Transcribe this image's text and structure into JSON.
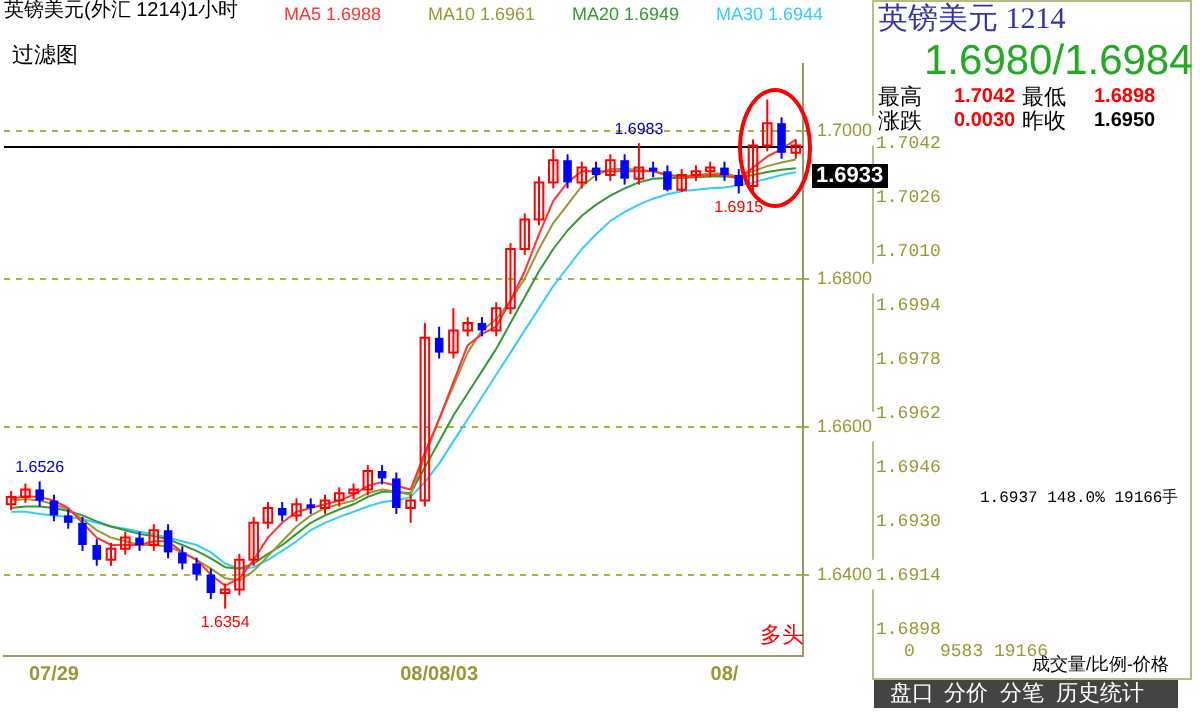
{
  "chart_data": {
    "type": "candlestick",
    "title": "英镑美元(外汇 1214)1小时",
    "categories": [
      null,
      null,
      null,
      "07/29",
      null,
      null,
      null,
      null,
      null,
      null,
      null,
      null,
      null,
      null,
      null,
      null,
      null,
      null,
      null,
      null,
      null,
      null,
      null,
      null,
      null,
      null,
      null,
      null,
      null,
      null,
      "08/08/03",
      null,
      null,
      null,
      null,
      null,
      null,
      null,
      null,
      null,
      null,
      null,
      null,
      null,
      null,
      null,
      null,
      null,
      null,
      null,
      "08/",
      null,
      null,
      null,
      null,
      null
    ],
    "ohlc": [
      [
        1.6495,
        1.6513,
        1.6487,
        1.6505
      ],
      [
        1.6505,
        1.6523,
        1.6497,
        1.6515
      ],
      [
        1.6515,
        1.6526,
        1.6492,
        1.65
      ],
      [
        1.65,
        1.6508,
        1.6472,
        1.648
      ],
      [
        1.648,
        1.6488,
        1.6462,
        1.647
      ],
      [
        1.647,
        1.6478,
        1.6432,
        1.644
      ],
      [
        1.644,
        1.6448,
        1.6412,
        1.642
      ],
      [
        1.642,
        1.6443,
        1.6412,
        1.6435
      ],
      [
        1.6435,
        1.6458,
        1.6427,
        1.645
      ],
      [
        1.645,
        1.6458,
        1.6432,
        1.644
      ],
      [
        1.644,
        1.6468,
        1.6432,
        1.646
      ],
      [
        1.646,
        1.6468,
        1.6422,
        1.643
      ],
      [
        1.643,
        1.6438,
        1.6407,
        1.6415
      ],
      [
        1.6415,
        1.6423,
        1.6392,
        1.64
      ],
      [
        1.64,
        1.6408,
        1.6367,
        1.6375
      ],
      [
        1.6375,
        1.6388,
        1.6354,
        1.638
      ],
      [
        1.638,
        1.6428,
        1.6372,
        1.642
      ],
      [
        1.642,
        1.6478,
        1.6412,
        1.647
      ],
      [
        1.647,
        1.6498,
        1.6462,
        1.649
      ],
      [
        1.649,
        1.6498,
        1.6472,
        1.648
      ],
      [
        1.648,
        1.6503,
        1.6472,
        1.6495
      ],
      [
        1.6495,
        1.6503,
        1.6482,
        1.649
      ],
      [
        1.649,
        1.6508,
        1.6482,
        1.65
      ],
      [
        1.65,
        1.6518,
        1.6492,
        1.651
      ],
      [
        1.651,
        1.6523,
        1.6502,
        1.6515
      ],
      [
        1.6515,
        1.6548,
        1.6507,
        1.654
      ],
      [
        1.654,
        1.6548,
        1.6522,
        1.653
      ],
      [
        1.653,
        1.6538,
        1.6482,
        1.649
      ],
      [
        1.649,
        1.6508,
        1.647,
        1.65
      ],
      [
        1.65,
        1.674,
        1.6492,
        1.672
      ],
      [
        1.672,
        1.6735,
        1.6692,
        1.67
      ],
      [
        1.67,
        1.676,
        1.6692,
        1.673
      ],
      [
        1.673,
        1.6748,
        1.6722,
        1.674
      ],
      [
        1.674,
        1.6748,
        1.6722,
        1.673
      ],
      [
        1.673,
        1.6768,
        1.6722,
        1.676
      ],
      [
        1.676,
        1.6848,
        1.6752,
        1.684
      ],
      [
        1.684,
        1.6888,
        1.6832,
        1.688
      ],
      [
        1.688,
        1.6938,
        1.6872,
        1.693
      ],
      [
        1.693,
        1.6975,
        1.6922,
        1.696
      ],
      [
        1.696,
        1.6968,
        1.6922,
        1.693
      ],
      [
        1.693,
        1.6958,
        1.6922,
        1.695
      ],
      [
        1.695,
        1.6958,
        1.6932,
        1.694
      ],
      [
        1.694,
        1.6968,
        1.6932,
        1.696
      ],
      [
        1.696,
        1.6968,
        1.6927,
        1.6935
      ],
      [
        1.6935,
        1.6983,
        1.6927,
        1.695
      ],
      [
        1.695,
        1.6958,
        1.6937,
        1.6945
      ],
      [
        1.6945,
        1.6953,
        1.6918,
        1.692
      ],
      [
        1.692,
        1.6948,
        1.6917,
        1.694
      ],
      [
        1.694,
        1.6953,
        1.6932,
        1.6945
      ],
      [
        1.6945,
        1.6958,
        1.6937,
        1.695
      ],
      [
        1.695,
        1.6958,
        1.6932,
        1.694
      ],
      [
        1.694,
        1.6948,
        1.6915,
        1.6925
      ],
      [
        1.6925,
        1.6988,
        1.6917,
        1.698
      ],
      [
        1.698,
        1.7042,
        1.6972,
        1.701
      ],
      [
        1.701,
        1.7018,
        1.6962,
        1.697
      ],
      [
        1.697,
        1.6988,
        1.6962,
        1.698
      ]
    ],
    "colors": [
      "#ff0000",
      "#ff0000",
      "#0000ff",
      "#0000ff",
      "#0000ff",
      "#0000ff",
      "#0000ff",
      "#ff0000",
      "#ff0000",
      "#0000ff",
      "#ff0000",
      "#0000ff",
      "#0000ff",
      "#0000ff",
      "#0000ff",
      "#ff0000",
      "#ff0000",
      "#ff0000",
      "#ff0000",
      "#0000ff",
      "#ff0000",
      "#0000ff",
      "#ff0000",
      "#ff0000",
      "#ff0000",
      "#ff0000",
      "#0000ff",
      "#0000ff",
      "#ff0000",
      "#ff0000",
      "#0000ff",
      "#ff0000",
      "#ff0000",
      "#0000ff",
      "#ff0000",
      "#ff0000",
      "#ff0000",
      "#ff0000",
      "#ff0000",
      "#0000ff",
      "#ff0000",
      "#0000ff",
      "#ff0000",
      "#0000ff",
      "#ff0000",
      "#0000ff",
      "#0000ff",
      "#ff0000",
      "#ff0000",
      "#ff0000",
      "#0000ff",
      "#0000ff",
      "#ff0000",
      "#ff0000",
      "#0000ff",
      "#ff0000"
    ],
    "series": [
      {
        "name": "MA5 1.6988",
        "type": "line",
        "color": "#ff3333",
        "values": [
          1.6502,
          1.6506,
          1.6505,
          1.65,
          1.649,
          1.647,
          1.645,
          1.644,
          1.644,
          1.644,
          1.6445,
          1.6445,
          1.643,
          1.642,
          1.64,
          1.6385,
          1.6395,
          1.642,
          1.645,
          1.647,
          1.6485,
          1.649,
          1.6495,
          1.65,
          1.6508,
          1.652,
          1.6525,
          1.652,
          1.6515,
          1.6565,
          1.661,
          1.666,
          1.671,
          1.6725,
          1.6735,
          1.677,
          1.681,
          1.686,
          1.6905,
          1.693,
          1.6945,
          1.6945,
          1.6945,
          1.6945,
          1.6945,
          1.6945,
          1.694,
          1.6938,
          1.6938,
          1.694,
          1.694,
          1.6935,
          1.695,
          1.6965,
          1.6975,
          1.6988
        ]
      },
      {
        "name": "MA10 1.6961",
        "type": "line",
        "color": "#999933",
        "values": [
          1.65,
          1.6502,
          1.65,
          1.6495,
          1.6488,
          1.6475,
          1.646,
          1.645,
          1.6445,
          1.644,
          1.644,
          1.6438,
          1.643,
          1.642,
          1.6408,
          1.6395,
          1.6392,
          1.6405,
          1.6425,
          1.6445,
          1.6465,
          1.648,
          1.649,
          1.6495,
          1.65,
          1.651,
          1.6515,
          1.6512,
          1.6508,
          1.656,
          1.661,
          1.6655,
          1.67,
          1.673,
          1.6745,
          1.677,
          1.68,
          1.684,
          1.6875,
          1.69,
          1.6925,
          1.694,
          1.6948,
          1.6948,
          1.6947,
          1.6945,
          1.694,
          1.6938,
          1.694,
          1.6942,
          1.6942,
          1.6938,
          1.6945,
          1.6952,
          1.6957,
          1.6961
        ]
      },
      {
        "name": "MA20 1.6949",
        "type": "line",
        "color": "#339933",
        "values": [
          1.649,
          1.6492,
          1.6492,
          1.649,
          1.6486,
          1.648,
          1.6472,
          1.6465,
          1.646,
          1.6455,
          1.6452,
          1.6448,
          1.644,
          1.6432,
          1.6422,
          1.641,
          1.6408,
          1.6415,
          1.6428,
          1.644,
          1.6455,
          1.647,
          1.648,
          1.6488,
          1.6495,
          1.6505,
          1.6512,
          1.6512,
          1.651,
          1.6545,
          1.658,
          1.6615,
          1.6645,
          1.6675,
          1.6705,
          1.674,
          1.6775,
          1.681,
          1.684,
          1.6865,
          1.6885,
          1.69,
          1.6912,
          1.6922,
          1.693,
          1.6935,
          1.6936,
          1.6936,
          1.6937,
          1.6938,
          1.6938,
          1.6937,
          1.694,
          1.6944,
          1.6947,
          1.6949
        ]
      },
      {
        "name": "MA30 1.6944",
        "type": "line",
        "color": "#33ccff",
        "values": [
          1.6485,
          1.6485,
          1.6482,
          1.648,
          1.6478,
          1.6475,
          1.647,
          1.6465,
          1.6462,
          1.6458,
          1.6455,
          1.645,
          1.6445,
          1.644,
          1.643,
          1.6415,
          1.6408,
          1.641,
          1.642,
          1.6432,
          1.6445,
          1.646,
          1.647,
          1.6478,
          1.6485,
          1.6492,
          1.6498,
          1.65,
          1.6505,
          1.6525,
          1.655,
          1.658,
          1.661,
          1.664,
          1.667,
          1.67,
          1.673,
          1.676,
          1.679,
          1.6815,
          1.684,
          1.686,
          1.6878,
          1.689,
          1.69,
          1.6908,
          1.6914,
          1.6918,
          1.692,
          1.6922,
          1.6923,
          1.6926,
          1.693,
          1.6935,
          1.694,
          1.6944
        ]
      }
    ],
    "ylim": [
      1.629,
      1.709
    ],
    "yticks": [
      {
        "value": 1.64,
        "label": "1.6400"
      },
      {
        "value": 1.66,
        "label": "1.6600"
      },
      {
        "value": 1.68,
        "label": "1.6800"
      },
      {
        "value": 1.7,
        "label": "1.7000"
      }
    ],
    "grid": "y",
    "legend": "top",
    "ref_lines": [
      {
        "axis": "y",
        "value": 1.6978,
        "color": "#000000"
      }
    ],
    "annotations": [
      "过滤图",
      {
        "text": "1.6526",
        "y": 1.6526
      },
      {
        "text": "1.6354",
        "y": 1.6354
      },
      {
        "text": "1.6983",
        "y": 1.6983
      },
      {
        "text": "1.6915",
        "y": 1.6915
      },
      "1.6933",
      "多头",
      "英镑美元 1214",
      "1.6980/1.6984",
      "最高",
      "1.7042",
      "最低",
      "1.6898",
      "涨跌",
      "0.0030",
      "昨收",
      "1.6950",
      "1.7042",
      "1.7026",
      "1.7010",
      "1.6994",
      "1.6978",
      "1.6962",
      "1.6946",
      "1.6930",
      "1.6914",
      "1.6898",
      "0",
      "9583",
      "19166",
      "1.6937 148.0% 19166手",
      "成交量/比例-价格",
      "盘口",
      "分价",
      "分笔",
      "历史统计"
    ]
  }
}
